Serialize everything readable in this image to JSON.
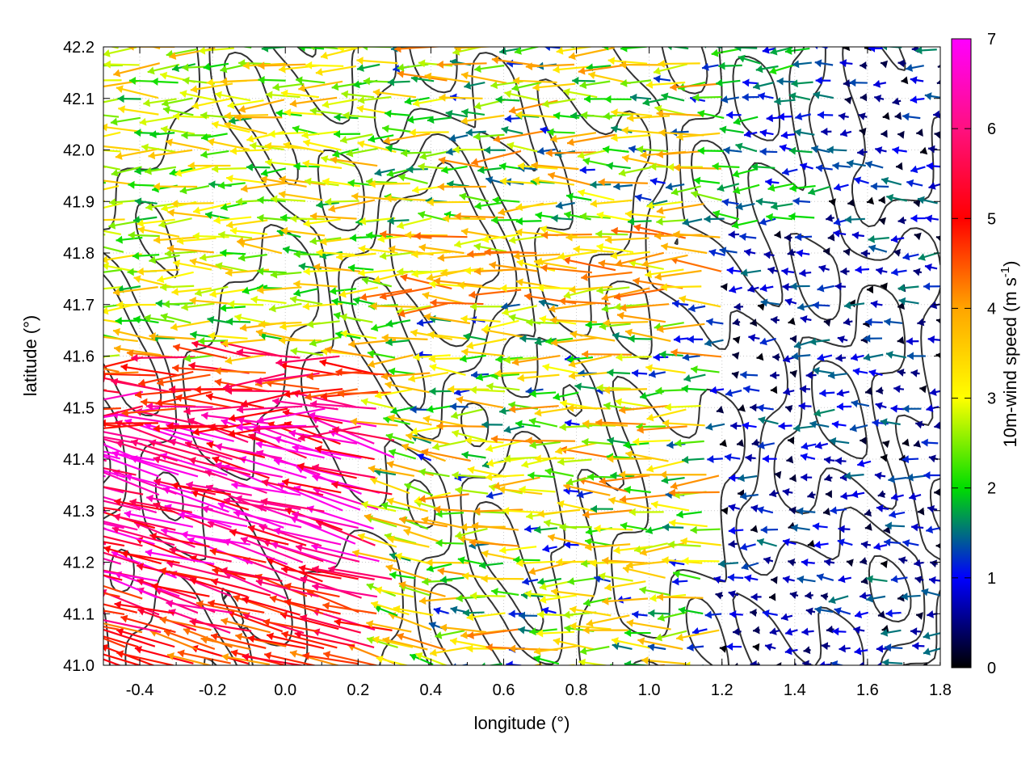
{
  "chart_data": {
    "type": "vector-field-with-contours",
    "title": "",
    "xlabel": "longitude (°)",
    "ylabel": "latitude (°)",
    "xlim": [
      -0.5,
      1.8
    ],
    "ylim": [
      41.0,
      42.2
    ],
    "x_ticks": [
      "-0.4",
      "-0.2",
      "0.0",
      "0.2",
      "0.4",
      "0.6",
      "0.8",
      "1.0",
      "1.2",
      "1.4",
      "1.6",
      "1.8"
    ],
    "x_tick_values": [
      -0.4,
      -0.2,
      0.0,
      0.2,
      0.4,
      0.6,
      0.8,
      1.0,
      1.2,
      1.4,
      1.6,
      1.8
    ],
    "y_ticks": [
      "41.0",
      "41.1",
      "41.2",
      "41.3",
      "41.4",
      "41.5",
      "41.6",
      "41.7",
      "41.8",
      "41.9",
      "42.0",
      "42.1",
      "42.2"
    ],
    "y_tick_values": [
      41.0,
      41.1,
      41.2,
      41.3,
      41.4,
      41.5,
      41.6,
      41.7,
      41.8,
      41.9,
      42.0,
      42.1,
      42.2
    ],
    "grid": true,
    "colorbar": {
      "label": "10m-wind speed (m s",
      "label_sup": "-1",
      "label_end": ")",
      "range": [
        0,
        7
      ],
      "ticks": [
        "0",
        "1",
        "2",
        "3",
        "4",
        "5",
        "6",
        "7"
      ],
      "tick_values": [
        0,
        1,
        2,
        3,
        4,
        5,
        6,
        7
      ],
      "colors": [
        "#000000",
        "#0000ff",
        "#00dd00",
        "#ffff00",
        "#ffa500",
        "#ff0000",
        "#ff00ff"
      ]
    },
    "vector_samples": {
      "description_units": "lon, lat, wind speed m/s (all vectors point roughly westward)",
      "west_strong_region": {
        "lon_range": [
          -0.5,
          0.3
        ],
        "lat_range": [
          41.0,
          41.6
        ],
        "speed": [
          4.5,
          7.0
        ]
      },
      "west_moderate_region": {
        "lon_range": [
          -0.5,
          0.3
        ],
        "lat_range": [
          41.6,
          42.2
        ],
        "speed": [
          2.0,
          4.5
        ]
      },
      "central_region": {
        "lon_range": [
          0.3,
          1.2
        ],
        "lat_range": [
          41.0,
          42.2
        ],
        "speed": [
          1.0,
          5.5
        ]
      },
      "east_calm_region": {
        "lon_range": [
          1.2,
          1.8
        ],
        "lat_range": [
          41.0,
          42.2
        ],
        "speed": [
          0.0,
          2.0
        ]
      }
    }
  }
}
